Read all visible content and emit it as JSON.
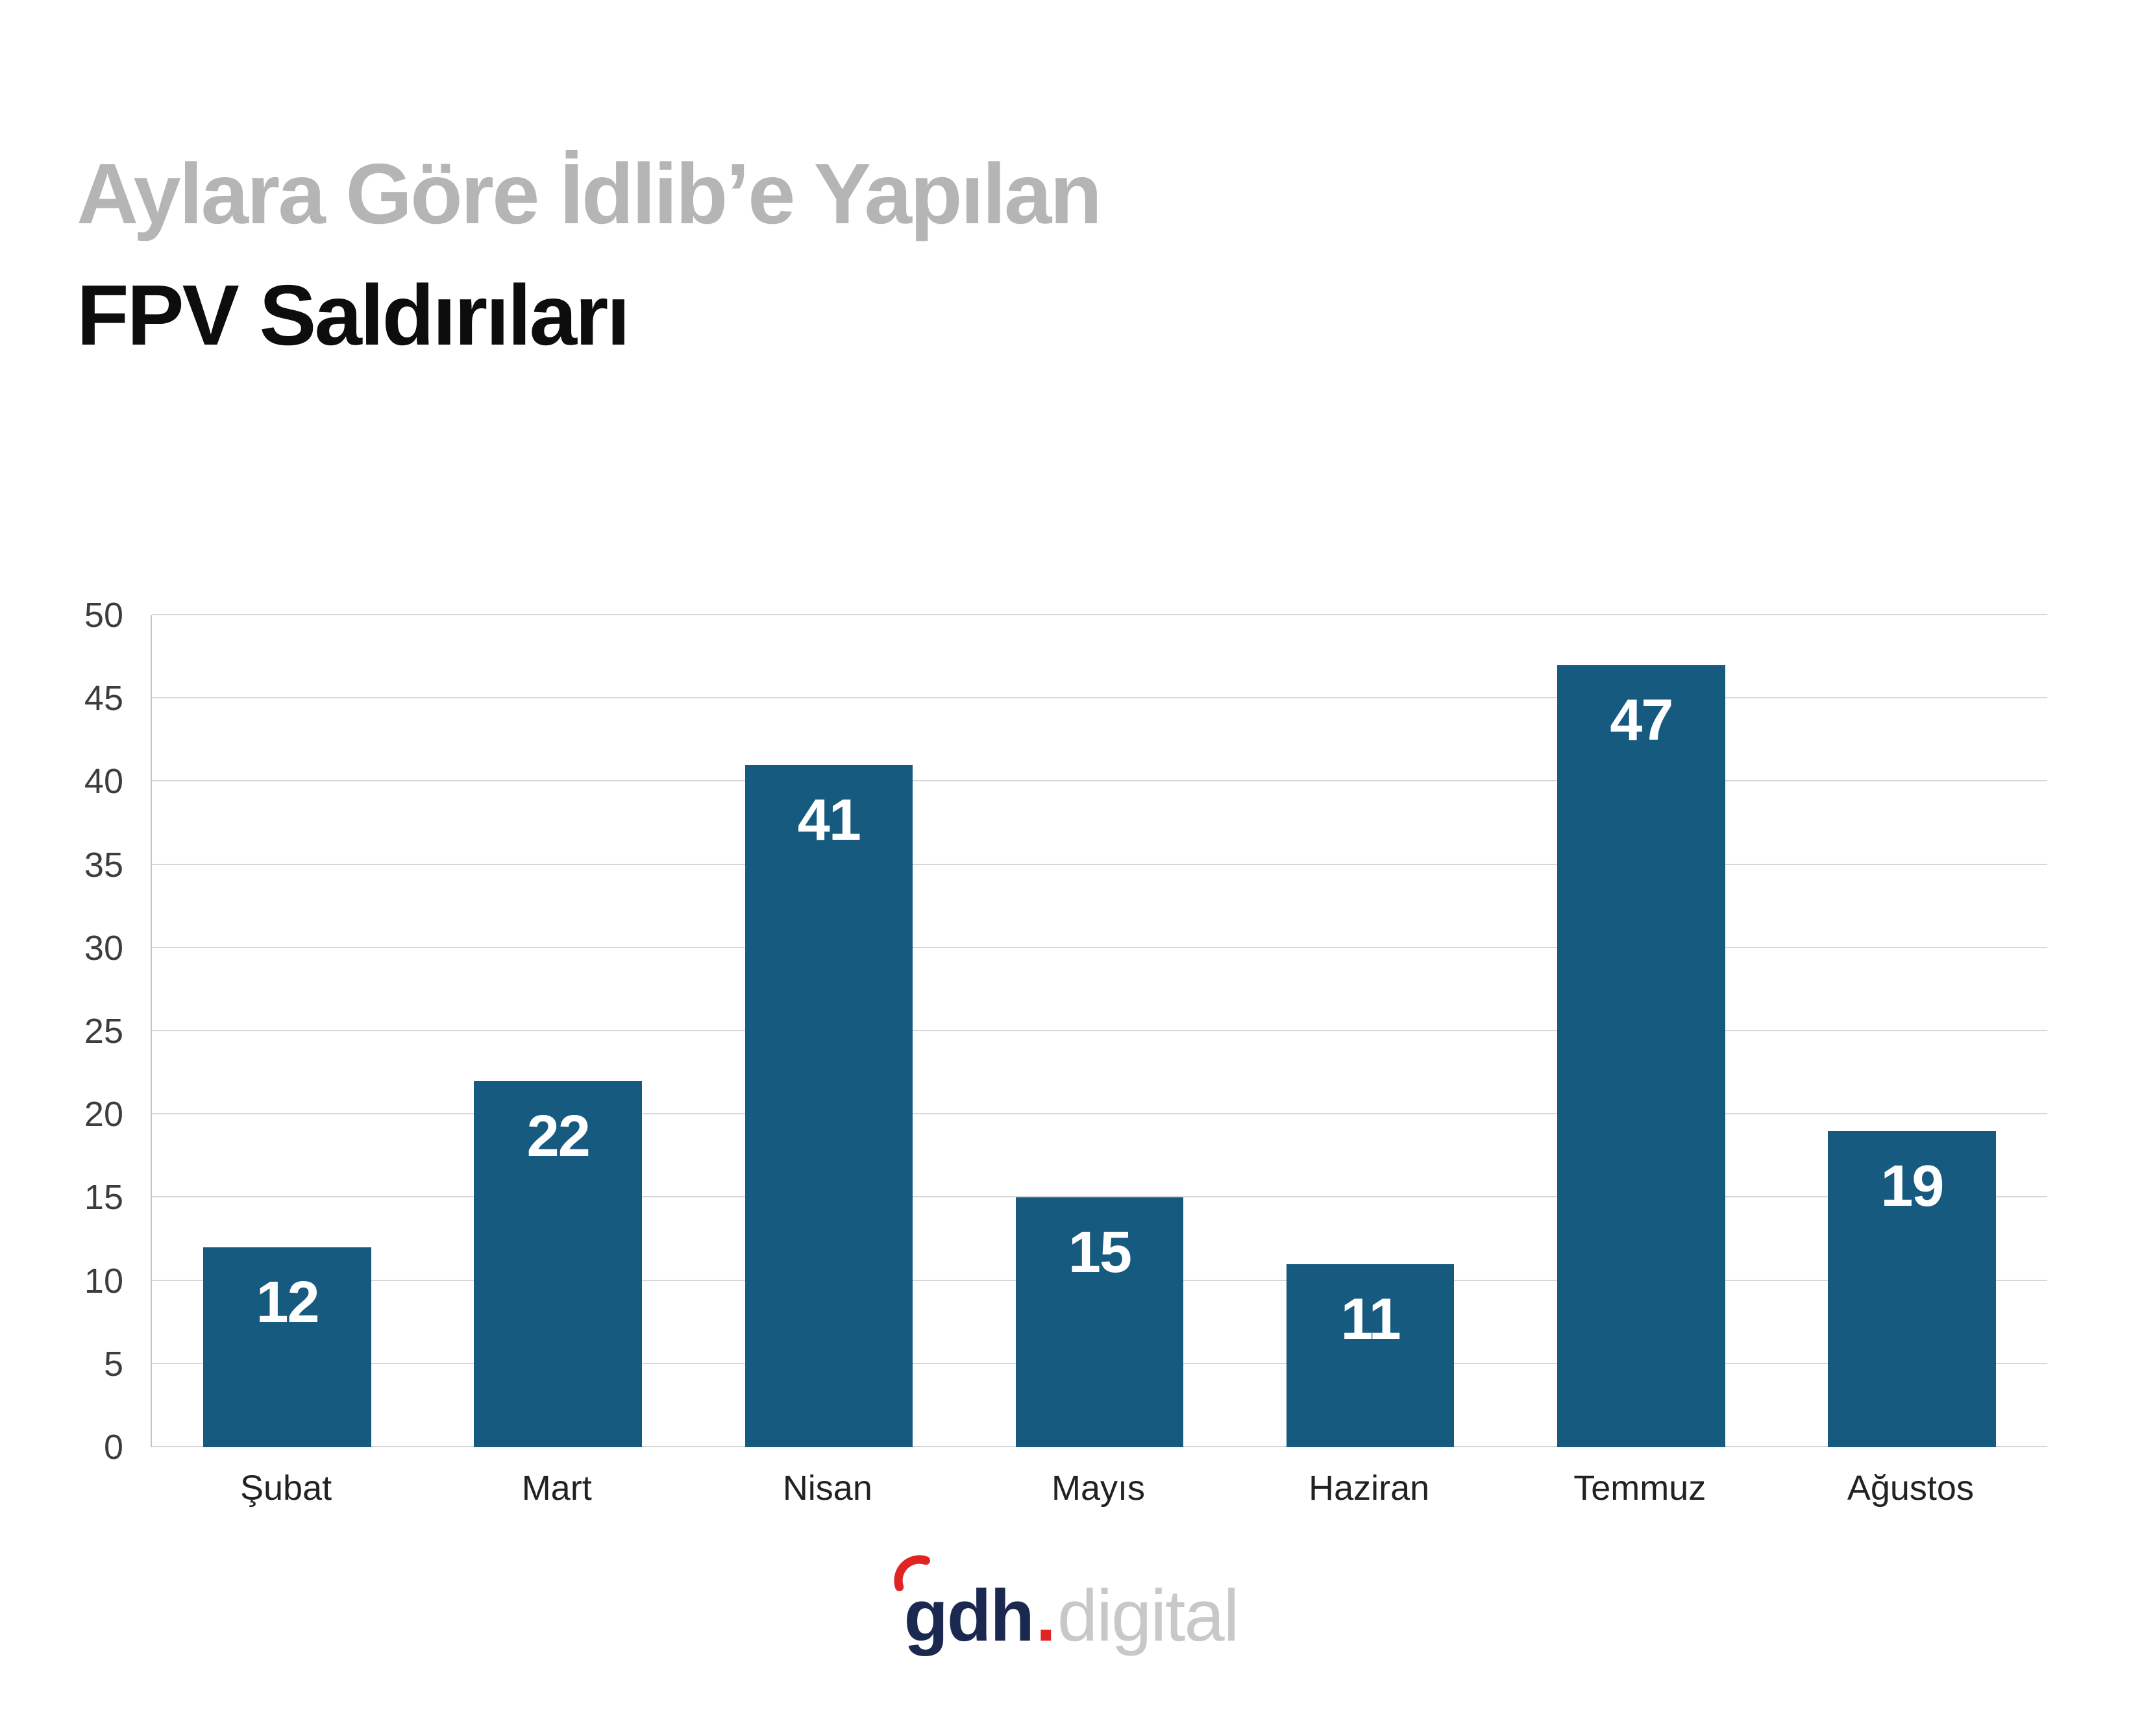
{
  "title": {
    "line1": "Aylara Göre İdlib’e Yapılan",
    "line2": "FPV Saldırıları"
  },
  "chart_data": {
    "type": "bar",
    "title": "Aylara Göre İdlib’e Yapılan FPV Saldırıları",
    "categories": [
      "Şubat",
      "Mart",
      "Nisan",
      "Mayıs",
      "Haziran",
      "Temmuz",
      "Ağustos"
    ],
    "values": [
      12,
      22,
      41,
      15,
      11,
      47,
      19
    ],
    "xlabel": "",
    "ylabel": "",
    "ylim": [
      0,
      50
    ],
    "yticks": [
      0,
      5,
      10,
      15,
      20,
      25,
      30,
      35,
      40,
      45,
      50
    ],
    "grid": true,
    "legend": false,
    "bar_color": "#175a80",
    "value_label_color": "#ffffff"
  },
  "footer": {
    "brand_bold": "gdh",
    "dot": ".",
    "brand_light": "digital",
    "accent_color": "#e02423"
  }
}
